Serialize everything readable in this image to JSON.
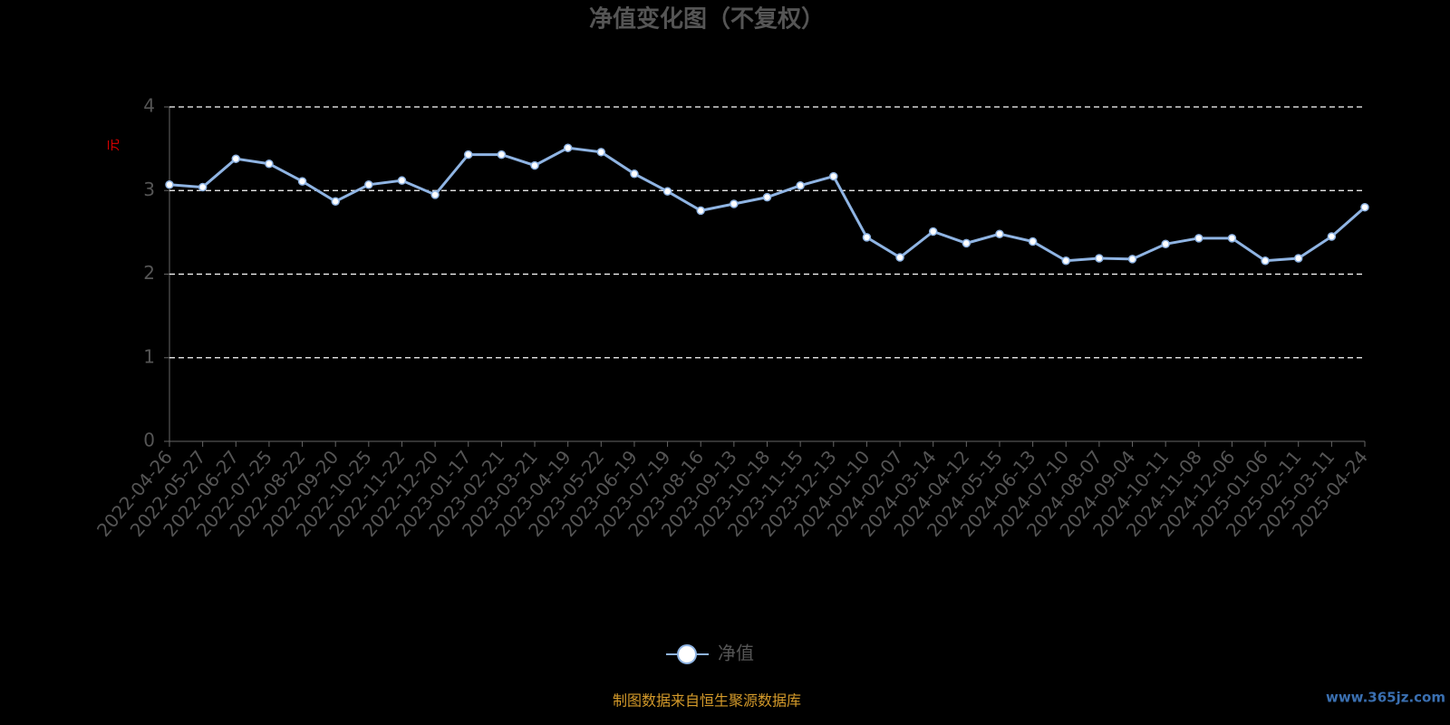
{
  "chart_data": {
    "type": "line",
    "title": "净值变化图（不复权）",
    "y_label": "元",
    "categories": [
      "2022-04-26",
      "2022-05-27",
      "2022-06-27",
      "2022-07-25",
      "2022-08-22",
      "2022-09-20",
      "2022-10-25",
      "2022-11-22",
      "2022-12-20",
      "2023-01-17",
      "2023-02-21",
      "2023-03-21",
      "2023-04-19",
      "2023-05-22",
      "2023-06-19",
      "2023-07-19",
      "2023-08-16",
      "2023-09-13",
      "2023-10-18",
      "2023-11-15",
      "2023-12-13",
      "2024-01-10",
      "2024-02-07",
      "2024-03-14",
      "2024-04-12",
      "2024-05-15",
      "2024-06-13",
      "2024-07-10",
      "2024-08-07",
      "2024-09-04",
      "2024-10-11",
      "2024-11-08",
      "2024-12-06",
      "2025-01-06",
      "2025-02-11",
      "2025-03-11",
      "2025-04-24"
    ],
    "series": [
      {
        "name": "净值",
        "color": "#8fb4e3",
        "values": [
          3.07,
          3.04,
          3.38,
          3.32,
          3.11,
          2.87,
          3.07,
          3.12,
          2.95,
          3.43,
          3.43,
          3.3,
          3.51,
          3.46,
          3.2,
          2.99,
          2.76,
          2.84,
          2.92,
          3.06,
          3.17,
          2.44,
          2.2,
          2.51,
          2.37,
          2.48,
          2.39,
          2.16,
          2.19,
          2.18,
          2.36,
          2.43,
          2.43,
          2.16,
          2.19,
          2.45,
          2.8
        ]
      }
    ],
    "ylim": [
      0,
      4
    ],
    "yticks": [
      0,
      1,
      2,
      3,
      4
    ],
    "grid": true
  },
  "footer": {
    "source": "制图数据来自恒生聚源数据库",
    "watermark": "www.365jz.com"
  }
}
